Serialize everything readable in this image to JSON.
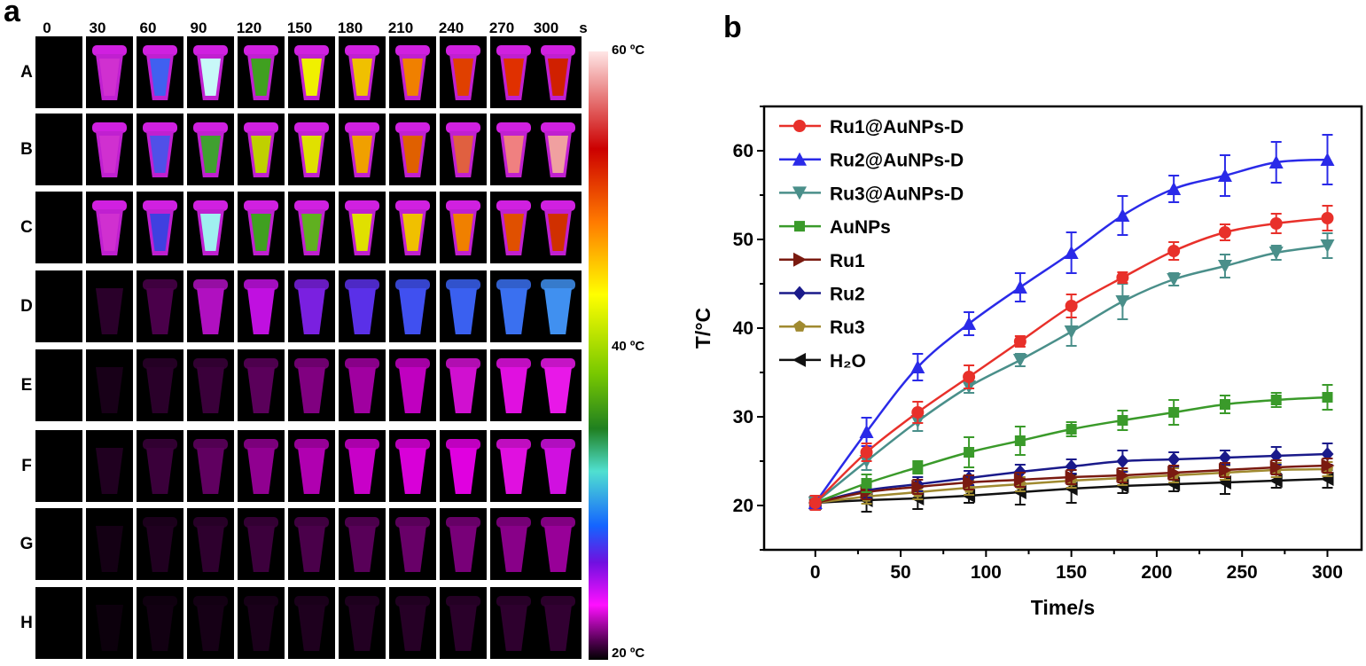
{
  "panel_a": {
    "letter": "a",
    "time_labels": [
      "0",
      "30",
      "60",
      "90",
      "120",
      "150",
      "180",
      "210",
      "240",
      "270",
      "300"
    ],
    "time_unit": "s",
    "row_labels": [
      "A",
      "B",
      "C",
      "D",
      "E",
      "F",
      "G",
      "H"
    ],
    "colorbar": {
      "top_label": "60 ºC",
      "mid_label": "40 ºC",
      "bottom_label": "20 ºC"
    }
  },
  "panel_b": {
    "letter": "b"
  },
  "chart_data": {
    "type": "line",
    "title": "",
    "xlabel": "Time/s",
    "ylabel": "T/°C",
    "xlim": [
      -30,
      320
    ],
    "ylim": [
      15,
      65
    ],
    "xticks": [
      "0",
      "50",
      "100",
      "150",
      "200",
      "250",
      "300"
    ],
    "yticks": [
      "20",
      "30",
      "40",
      "50",
      "60"
    ],
    "x": [
      0,
      30,
      60,
      90,
      120,
      150,
      180,
      210,
      240,
      270,
      300
    ],
    "legend_position": "top-left",
    "series": [
      {
        "name": "Ru1@AuNPs-D",
        "color": "#e8302a",
        "marker": "circle",
        "values": [
          20.3,
          26.0,
          30.5,
          34.5,
          38.5,
          42.5,
          45.7,
          48.7,
          50.8,
          51.8,
          52.4
        ],
        "errors": [
          0.8,
          1.0,
          1.2,
          1.3,
          0.6,
          1.3,
          0.6,
          1.0,
          0.9,
          1.1,
          1.4
        ]
      },
      {
        "name": "Ru2@AuNPs-D",
        "color": "#2a2ae8",
        "marker": "triangle-up",
        "values": [
          20.3,
          28.3,
          35.6,
          40.5,
          44.6,
          48.5,
          52.7,
          55.7,
          57.2,
          58.7,
          59.0
        ],
        "errors": [
          0.8,
          1.6,
          1.5,
          1.3,
          1.6,
          2.3,
          2.2,
          1.5,
          2.3,
          2.3,
          2.8
        ]
      },
      {
        "name": "Ru3@AuNPs-D",
        "color": "#4a8f8a",
        "marker": "triangle-down",
        "values": [
          20.3,
          25.0,
          29.5,
          33.4,
          36.4,
          39.6,
          43.0,
          45.5,
          47.0,
          48.5,
          49.3
        ],
        "errors": [
          0.8,
          1.0,
          1.1,
          0.7,
          0.7,
          1.6,
          2.0,
          0.7,
          1.3,
          0.8,
          1.4
        ]
      },
      {
        "name": "AuNPs",
        "color": "#3a9a2a",
        "marker": "square",
        "values": [
          20.3,
          22.5,
          24.3,
          26.0,
          27.3,
          28.6,
          29.6,
          30.5,
          31.4,
          31.9,
          32.2
        ],
        "errors": [
          0.8,
          1.0,
          0.7,
          1.7,
          1.6,
          0.8,
          1.1,
          1.4,
          1.0,
          0.8,
          1.4
        ]
      },
      {
        "name": "Ru1",
        "color": "#7a1a10",
        "marker": "triangle-right",
        "values": [
          20.3,
          21.5,
          22.1,
          22.6,
          22.9,
          23.2,
          23.4,
          23.7,
          24.0,
          24.3,
          24.5
        ],
        "errors": [
          0.6,
          0.8,
          0.8,
          0.8,
          0.8,
          0.8,
          0.8,
          0.8,
          0.8,
          0.8,
          0.8
        ]
      },
      {
        "name": "Ru2",
        "color": "#1a1a8a",
        "marker": "diamond",
        "values": [
          20.3,
          21.7,
          22.4,
          23.1,
          23.8,
          24.4,
          25.0,
          25.2,
          25.4,
          25.6,
          25.8
        ],
        "errors": [
          0.6,
          0.8,
          0.8,
          0.8,
          0.8,
          0.8,
          1.2,
          0.8,
          0.8,
          1.0,
          1.2
        ]
      },
      {
        "name": "Ru3",
        "color": "#a08a30",
        "marker": "pentagon",
        "values": [
          20.3,
          21.0,
          21.5,
          22.0,
          22.4,
          22.8,
          23.1,
          23.4,
          23.7,
          24.0,
          24.1
        ],
        "errors": [
          0.6,
          0.8,
          0.8,
          0.8,
          0.8,
          0.8,
          0.8,
          0.8,
          0.8,
          0.8,
          0.8
        ]
      },
      {
        "name": "H₂O",
        "color": "#111111",
        "marker": "triangle-left",
        "values": [
          20.3,
          20.6,
          20.8,
          21.1,
          21.5,
          21.9,
          22.2,
          22.4,
          22.6,
          22.8,
          23.0
        ],
        "errors": [
          0.6,
          1.3,
          1.2,
          0.8,
          1.4,
          1.6,
          0.8,
          0.8,
          1.3,
          0.8,
          1.0
        ]
      }
    ]
  }
}
